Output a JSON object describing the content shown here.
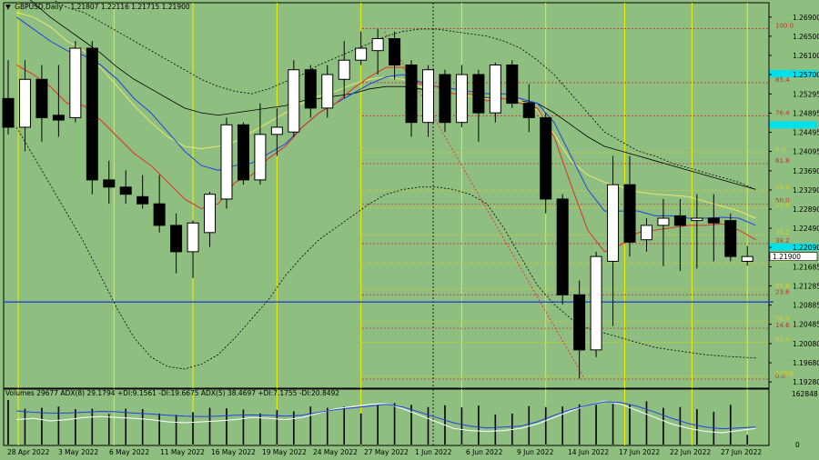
{
  "header": {
    "symbol": "GBPUSD,Daily",
    "ohlc": "1.21807 1.22116 1.21715 1.21900"
  },
  "indicator": {
    "label": "Volumes 29677  ADX(8) 29.1794 +DI:9.1561 -DI:19.6675  ADX(5) 38.4697 +DI:7.1755 -DI:20.8492",
    "ymax_label": "162848",
    "ymin_label": "0"
  },
  "colors": {
    "background": "#8fbf80",
    "bull_fill": "#ffffff",
    "bear_fill": "#000000",
    "ma_red": "#e03020",
    "ma_blue": "#2040e0",
    "ma_yellow": "#e8e870",
    "ma_black": "#000000",
    "support_blue": "#2040d0",
    "price_marker": "#00e0e8",
    "fib_red": "#c03030",
    "fib_yellow": "#d8d020",
    "vline_yellow": "#f0f000"
  },
  "chart_data": {
    "type": "candlestick",
    "ylim": [
      1.1915,
      1.272
    ],
    "y_ticks": [
      "1.26900",
      "1.26500",
      "1.26100",
      "1.25700",
      "1.25295",
      "1.24895",
      "1.24495",
      "1.24095",
      "1.23690",
      "1.23290",
      "1.22890",
      "1.22490",
      "1.22090",
      "1.21685",
      "1.21285",
      "1.20885",
      "1.20485",
      "1.20080",
      "1.19680",
      "1.19280"
    ],
    "x_labels": [
      "28 Apr 2022",
      "3 May 2022",
      "6 May 2022",
      "11 May 2022",
      "16 May 2022",
      "19 May 2022",
      "24 May 2022",
      "27 May 2022",
      "1 Jun 2022",
      "6 Jun 2022",
      "9 Jun 2022",
      "14 Jun 2022",
      "17 Jun 2022",
      "22 Jun 2022",
      "27 Jun 2022"
    ],
    "current_price_label": "1.21900",
    "marker_price": 1.2572,
    "marker_price2": 1.2465,
    "marker_price3": 1.221,
    "support_level": 1.2095,
    "candles": [
      {
        "o": 1.252,
        "h": 1.26,
        "l": 1.2445,
        "c": 1.246
      },
      {
        "o": 1.246,
        "h": 1.26,
        "l": 1.241,
        "c": 1.256
      },
      {
        "o": 1.256,
        "h": 1.259,
        "l": 1.243,
        "c": 1.248
      },
      {
        "o": 1.2485,
        "h": 1.259,
        "l": 1.244,
        "c": 1.2475
      },
      {
        "o": 1.248,
        "h": 1.264,
        "l": 1.247,
        "c": 1.2625
      },
      {
        "o": 1.2625,
        "h": 1.264,
        "l": 1.232,
        "c": 1.235
      },
      {
        "o": 1.235,
        "h": 1.239,
        "l": 1.23,
        "c": 1.2335
      },
      {
        "o": 1.2335,
        "h": 1.237,
        "l": 1.23,
        "c": 1.232
      },
      {
        "o": 1.2315,
        "h": 1.236,
        "l": 1.229,
        "c": 1.23
      },
      {
        "o": 1.23,
        "h": 1.236,
        "l": 1.224,
        "c": 1.2255
      },
      {
        "o": 1.2255,
        "h": 1.228,
        "l": 1.2155,
        "c": 1.22
      },
      {
        "o": 1.22,
        "h": 1.2265,
        "l": 1.2145,
        "c": 1.226
      },
      {
        "o": 1.224,
        "h": 1.2325,
        "l": 1.221,
        "c": 1.232
      },
      {
        "o": 1.231,
        "h": 1.248,
        "l": 1.229,
        "c": 1.2465
      },
      {
        "o": 1.2465,
        "h": 1.247,
        "l": 1.234,
        "c": 1.235
      },
      {
        "o": 1.235,
        "h": 1.251,
        "l": 1.234,
        "c": 1.2445
      },
      {
        "o": 1.2445,
        "h": 1.25,
        "l": 1.24,
        "c": 1.246
      },
      {
        "o": 1.245,
        "h": 1.26,
        "l": 1.244,
        "c": 1.258
      },
      {
        "o": 1.258,
        "h": 1.259,
        "l": 1.248,
        "c": 1.25
      },
      {
        "o": 1.25,
        "h": 1.259,
        "l": 1.248,
        "c": 1.257
      },
      {
        "o": 1.256,
        "h": 1.264,
        "l": 1.252,
        "c": 1.26
      },
      {
        "o": 1.26,
        "h": 1.266,
        "l": 1.259,
        "c": 1.2625
      },
      {
        "o": 1.262,
        "h": 1.2665,
        "l": 1.257,
        "c": 1.2645
      },
      {
        "o": 1.2645,
        "h": 1.266,
        "l": 1.256,
        "c": 1.259
      },
      {
        "o": 1.259,
        "h": 1.26,
        "l": 1.244,
        "c": 1.247
      },
      {
        "o": 1.247,
        "h": 1.259,
        "l": 1.244,
        "c": 1.258
      },
      {
        "o": 1.257,
        "h": 1.258,
        "l": 1.245,
        "c": 1.247
      },
      {
        "o": 1.247,
        "h": 1.259,
        "l": 1.246,
        "c": 1.257
      },
      {
        "o": 1.257,
        "h": 1.258,
        "l": 1.243,
        "c": 1.249
      },
      {
        "o": 1.249,
        "h": 1.2595,
        "l": 1.247,
        "c": 1.259
      },
      {
        "o": 1.259,
        "h": 1.26,
        "l": 1.25,
        "c": 1.251
      },
      {
        "o": 1.251,
        "h": 1.255,
        "l": 1.245,
        "c": 1.248
      },
      {
        "o": 1.248,
        "h": 1.249,
        "l": 1.228,
        "c": 1.231
      },
      {
        "o": 1.231,
        "h": 1.232,
        "l": 1.209,
        "c": 1.211
      },
      {
        "o": 1.211,
        "h": 1.214,
        "l": 1.1935,
        "c": 1.1995
      },
      {
        "o": 1.1995,
        "h": 1.22,
        "l": 1.198,
        "c": 1.219
      },
      {
        "o": 1.218,
        "h": 1.24,
        "l": 1.2045,
        "c": 1.234
      },
      {
        "o": 1.234,
        "h": 1.24,
        "l": 1.219,
        "c": 1.222
      },
      {
        "o": 1.2225,
        "h": 1.227,
        "l": 1.22,
        "c": 1.2255
      },
      {
        "o": 1.2255,
        "h": 1.231,
        "l": 1.217,
        "c": 1.227
      },
      {
        "o": 1.2275,
        "h": 1.231,
        "l": 1.216,
        "c": 1.2255
      },
      {
        "o": 1.2265,
        "h": 1.232,
        "l": 1.2165,
        "c": 1.227
      },
      {
        "o": 1.227,
        "h": 1.232,
        "l": 1.218,
        "c": 1.226
      },
      {
        "o": 1.2265,
        "h": 1.228,
        "l": 1.218,
        "c": 1.219
      },
      {
        "o": 1.218,
        "h": 1.2212,
        "l": 1.2171,
        "c": 1.219
      }
    ],
    "ma_red": [
      1.259,
      1.257,
      1.2545,
      1.251,
      1.2505,
      1.2475,
      1.244,
      1.2405,
      1.238,
      1.2345,
      1.231,
      1.229,
      1.23,
      1.2345,
      1.236,
      1.2395,
      1.242,
      1.246,
      1.249,
      1.251,
      1.254,
      1.2565,
      1.2585,
      1.2585,
      1.255,
      1.2545,
      1.253,
      1.253,
      1.2515,
      1.252,
      1.251,
      1.25,
      1.244,
      1.234,
      1.2245,
      1.22,
      1.2215,
      1.224,
      1.2245,
      1.225,
      1.2255,
      1.2255,
      1.2258,
      1.2245,
      1.2225
    ],
    "ma_blue": [
      1.269,
      1.2665,
      1.264,
      1.262,
      1.261,
      1.259,
      1.256,
      1.252,
      1.249,
      1.245,
      1.241,
      1.238,
      1.237,
      1.238,
      1.2385,
      1.2405,
      1.2425,
      1.246,
      1.249,
      1.251,
      1.253,
      1.255,
      1.2565,
      1.257,
      1.2555,
      1.2545,
      1.254,
      1.2535,
      1.253,
      1.253,
      1.252,
      1.251,
      1.247,
      1.24,
      1.233,
      1.2285,
      1.2285,
      1.2285,
      1.2275,
      1.2275,
      1.227,
      1.227,
      1.2272,
      1.227,
      1.2255
    ],
    "ma_yellow": [
      1.27,
      1.269,
      1.267,
      1.264,
      1.262,
      1.2585,
      1.2545,
      1.2505,
      1.247,
      1.244,
      1.242,
      1.2415,
      1.242,
      1.243,
      1.245,
      1.247,
      1.249,
      1.251,
      1.2525,
      1.2535,
      1.255,
      1.256,
      1.2565,
      1.256,
      1.2545,
      1.2535,
      1.253,
      1.2525,
      1.252,
      1.252,
      1.2515,
      1.2495,
      1.2445,
      1.239,
      1.236,
      1.2345,
      1.2335,
      1.2325,
      1.232,
      1.2318,
      1.2315,
      1.2305,
      1.2295,
      1.2285,
      1.227
    ],
    "ma_black": [
      1.275,
      1.272,
      1.269,
      1.2665,
      1.264,
      1.2615,
      1.2585,
      1.256,
      1.254,
      1.252,
      1.25,
      1.249,
      1.2485,
      1.249,
      1.2495,
      1.25,
      1.2505,
      1.2515,
      1.252,
      1.2525,
      1.253,
      1.254,
      1.2545,
      1.2545,
      1.254,
      1.2535,
      1.253,
      1.2525,
      1.2522,
      1.252,
      1.2515,
      1.251,
      1.249,
      1.2465,
      1.244,
      1.242,
      1.241,
      1.24,
      1.239,
      1.238,
      1.237,
      1.236,
      1.235,
      1.234,
      1.233
    ],
    "bb_upper": [
      1.278,
      1.276,
      1.273,
      1.271,
      1.27,
      1.268,
      1.266,
      1.264,
      1.262,
      1.26,
      1.258,
      1.256,
      1.2545,
      1.2535,
      1.253,
      1.254,
      1.2555,
      1.257,
      1.259,
      1.2605,
      1.262,
      1.2635,
      1.265,
      1.266,
      1.2665,
      1.2665,
      1.266,
      1.2655,
      1.265,
      1.264,
      1.2625,
      1.26,
      1.257,
      1.253,
      1.249,
      1.245,
      1.243,
      1.241,
      1.24,
      1.2385,
      1.2375,
      1.2365,
      1.2355,
      1.2345,
      1.233
    ],
    "bb_lower": [
      1.246,
      1.24,
      1.234,
      1.228,
      1.222,
      1.215,
      1.208,
      1.202,
      1.198,
      1.196,
      1.1955,
      1.1965,
      1.1985,
      1.202,
      1.206,
      1.21,
      1.215,
      1.219,
      1.2225,
      1.225,
      1.2275,
      1.23,
      1.232,
      1.233,
      1.2335,
      1.2335,
      1.233,
      1.232,
      1.23,
      1.225,
      1.219,
      1.213,
      1.209,
      1.206,
      1.204,
      1.203,
      1.202,
      1.201,
      1.2,
      1.1995,
      1.199,
      1.1985,
      1.1982,
      1.198,
      1.1978
    ],
    "volumes": [
      1.0,
      0.8,
      0.82,
      0.85,
      0.79,
      0.8,
      0.68,
      0.8,
      0.79,
      0.69,
      0.66,
      0.72,
      0.82,
      0.81,
      0.78,
      0.69,
      0.77,
      0.74,
      0.85,
      0.82,
      0.85,
      0.69,
      0.89,
      0.93,
      0.89,
      0.84,
      0.88,
      0.83,
      0.87,
      0.67,
      0.69,
      0.86,
      0.84,
      0.85,
      0.9,
      0.89,
      0.91,
      0.9,
      0.97,
      0.82,
      0.84,
      0.79,
      0.73,
      0.89,
      0.2
    ],
    "adx_white": [
      0.55,
      0.58,
      0.52,
      0.55,
      0.6,
      0.62,
      0.6,
      0.58,
      0.55,
      0.5,
      0.48,
      0.5,
      0.52,
      0.55,
      0.6,
      0.58,
      0.55,
      0.6,
      0.7,
      0.8,
      0.85,
      0.9,
      0.92,
      0.8,
      0.65,
      0.5,
      0.35,
      0.3,
      0.28,
      0.3,
      0.35,
      0.45,
      0.6,
      0.75,
      0.88,
      0.98,
      0.9,
      0.75,
      0.6,
      0.45,
      0.35,
      0.28,
      0.25,
      0.3,
      0.35
    ],
    "adx_blue": [
      0.75,
      0.72,
      0.7,
      0.7,
      0.72,
      0.74,
      0.73,
      0.7,
      0.68,
      0.65,
      0.63,
      0.62,
      0.63,
      0.65,
      0.66,
      0.65,
      0.63,
      0.65,
      0.72,
      0.78,
      0.82,
      0.86,
      0.9,
      0.84,
      0.72,
      0.6,
      0.48,
      0.4,
      0.36,
      0.38,
      0.4,
      0.5,
      0.65,
      0.78,
      0.88,
      0.96,
      0.94,
      0.85,
      0.72,
      0.58,
      0.46,
      0.38,
      0.34,
      0.36,
      0.38
    ],
    "fib_levels": [
      {
        "label": "100.0",
        "price": 1.2666,
        "color": "fib_red"
      },
      {
        "label": "85.4",
        "price": 1.2553,
        "color": "fib_red"
      },
      {
        "label": "76.4",
        "price": 1.2484,
        "color": "fib_red"
      },
      {
        "label": "61.8",
        "price": 1.2384,
        "color": "fib_red"
      },
      {
        "label": "50.0",
        "price": 1.23,
        "color": "fib_red"
      },
      {
        "label": "38.2",
        "price": 1.2217,
        "color": "fib_red"
      },
      {
        "label": "23.6",
        "price": 1.211,
        "color": "fib_red"
      },
      {
        "label": "14.6",
        "price": 1.204,
        "color": "fib_red"
      },
      {
        "label": "0.0",
        "price": 1.1934,
        "color": "fib_red"
      },
      {
        "label": "0.0",
        "price": 1.2407,
        "color": "fib_yellow"
      },
      {
        "label": "14.6",
        "price": 1.2328,
        "color": "fib_yellow"
      },
      {
        "label": "23.6",
        "price": 1.2292,
        "color": "fib_yellow"
      },
      {
        "label": "38.2",
        "price": 1.2235,
        "color": "fib_yellow"
      },
      {
        "label": "50.0",
        "price": 1.2176,
        "color": "fib_yellow"
      },
      {
        "label": "61.8",
        "price": 1.2122,
        "color": "fib_yellow"
      },
      {
        "label": "76.4",
        "price": 1.2054,
        "color": "fib_yellow"
      },
      {
        "label": "85.4",
        "price": 1.2011,
        "color": "fib_yellow"
      },
      {
        "label": "100.0",
        "price": 1.194,
        "color": "fib_yellow"
      }
    ],
    "yellow_vlines_at_candle": [
      0.6,
      6.3,
      11.0,
      16.0,
      21.0,
      27.0,
      32.0,
      36.7,
      40.7,
      44.0
    ],
    "black_vlines_at_candle": [
      25.3
    ],
    "trendline": {
      "from": [
        22.4,
        1.266
      ],
      "to": [
        34.3,
        1.1935
      ]
    }
  }
}
